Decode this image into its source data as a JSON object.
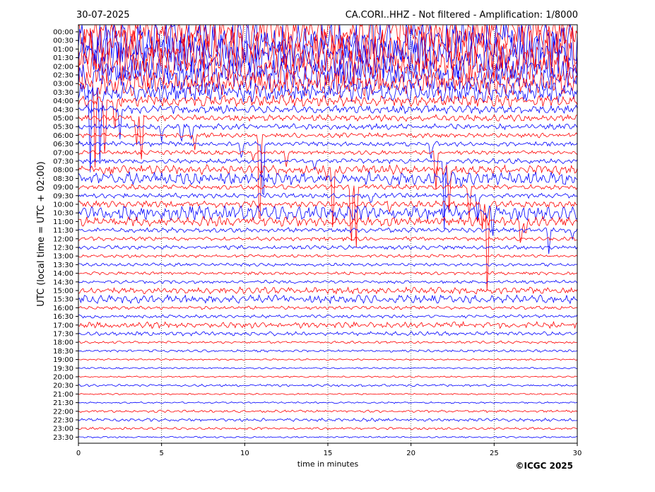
{
  "header": {
    "date": "30-07-2025",
    "station_title": "CA.CORI..HHZ - Not filtered - Amplification: 1/8000"
  },
  "footer": {
    "copyright": "©ICGC 2025"
  },
  "colors": {
    "trace_a": "#ff0000",
    "trace_b": "#0000ff",
    "axis": "#000000",
    "grid": "#000000"
  },
  "chart_data": {
    "type": "line",
    "xlabel": "time in minutes",
    "ylabel": "UTC (local time = UTC + 02:00)",
    "xlim": [
      0,
      30
    ],
    "xticks": [
      0,
      5,
      10,
      15,
      20,
      25,
      30
    ],
    "xtick_labels": [
      "0",
      "5",
      "10",
      "15",
      "20",
      "25",
      "30"
    ],
    "grid": "vertical dotted at x ticks",
    "rows": [
      "00:00",
      "00:30",
      "01:00",
      "01:30",
      "02:00",
      "02:30",
      "03:00",
      "03:30",
      "04:00",
      "04:30",
      "05:00",
      "05:30",
      "06:00",
      "06:30",
      "07:00",
      "07:30",
      "08:00",
      "08:30",
      "09:00",
      "09:30",
      "10:00",
      "10:30",
      "11:00",
      "11:30",
      "12:00",
      "12:30",
      "13:00",
      "13:30",
      "14:00",
      "14:30",
      "15:00",
      "15:30",
      "16:00",
      "16:30",
      "17:00",
      "17:30",
      "18:00",
      "18:30",
      "19:00",
      "19:30",
      "20:00",
      "20:30",
      "21:00",
      "21:30",
      "22:00",
      "22:30",
      "23:00",
      "23:30"
    ],
    "row_colors": "alternating red, blue",
    "noise_level": [
      3.0,
      3.0,
      2.8,
      2.6,
      2.4,
      2.0,
      1.5,
      1.2,
      0.7,
      0.5,
      0.4,
      0.35,
      0.3,
      0.3,
      0.25,
      0.3,
      0.6,
      0.8,
      0.3,
      0.3,
      0.4,
      0.9,
      0.6,
      0.3,
      0.25,
      0.25,
      0.2,
      0.2,
      0.2,
      0.2,
      0.4,
      0.5,
      0.2,
      0.2,
      0.4,
      0.25,
      0.15,
      0.15,
      0.1,
      0.1,
      0.1,
      0.15,
      0.1,
      0.1,
      0.15,
      0.2,
      0.15,
      0.1
    ],
    "spikes": [
      {
        "row": 5,
        "minute": 0.7,
        "depth": 13
      },
      {
        "row": 6,
        "minute": 1.0,
        "depth": 11
      },
      {
        "row": 7,
        "minute": 1.3,
        "depth": 9
      },
      {
        "row": 8,
        "minute": 1.6,
        "depth": 8
      },
      {
        "row": 8,
        "minute": 2.2,
        "depth": 4
      },
      {
        "row": 9,
        "minute": 2.5,
        "depth": 4
      },
      {
        "row": 10,
        "minute": 3.5,
        "depth": 4
      },
      {
        "row": 10,
        "minute": 3.8,
        "depth": 6
      },
      {
        "row": 11,
        "minute": 5.0,
        "depth": 2
      },
      {
        "row": 11,
        "minute": 6.2,
        "depth": 2
      },
      {
        "row": 11,
        "minute": 6.8,
        "depth": 2
      },
      {
        "row": 12,
        "minute": 7.0,
        "depth": 2
      },
      {
        "row": 13,
        "minute": 9.8,
        "depth": 2
      },
      {
        "row": 14,
        "minute": 10.5,
        "depth": 1
      },
      {
        "row": 12,
        "minute": 10.9,
        "depth": 15
      },
      {
        "row": 13,
        "minute": 11.1,
        "depth": 9
      },
      {
        "row": 14,
        "minute": 12.5,
        "depth": 2
      },
      {
        "row": 15,
        "minute": 14.2,
        "depth": 1
      },
      {
        "row": 16,
        "minute": 14.9,
        "depth": 1
      },
      {
        "row": 16,
        "minute": 15.3,
        "depth": 8
      },
      {
        "row": 17,
        "minute": 15.6,
        "depth": 1
      },
      {
        "row": 18,
        "minute": 16.4,
        "depth": 8
      },
      {
        "row": 18,
        "minute": 16.7,
        "depth": 8
      },
      {
        "row": 19,
        "minute": 17.6,
        "depth": 1
      },
      {
        "row": 20,
        "minute": 18.7,
        "depth": 1
      },
      {
        "row": 13,
        "minute": 21.2,
        "depth": 2
      },
      {
        "row": 14,
        "minute": 21.5,
        "depth": 5
      },
      {
        "row": 15,
        "minute": 22.0,
        "depth": 8
      },
      {
        "row": 16,
        "minute": 22.3,
        "depth": 5
      },
      {
        "row": 17,
        "minute": 23.0,
        "depth": 1
      },
      {
        "row": 18,
        "minute": 23.5,
        "depth": 4
      },
      {
        "row": 19,
        "minute": 24.0,
        "depth": 3
      },
      {
        "row": 20,
        "minute": 24.3,
        "depth": 3
      },
      {
        "row": 20,
        "minute": 24.6,
        "depth": 13
      },
      {
        "row": 21,
        "minute": 24.9,
        "depth": 3
      },
      {
        "row": 22,
        "minute": 26.6,
        "depth": 3
      },
      {
        "row": 22,
        "minute": 26.9,
        "depth": 2
      },
      {
        "row": 23,
        "minute": 28.3,
        "depth": 3
      },
      {
        "row": 23,
        "minute": 29.7,
        "depth": 1
      }
    ]
  }
}
